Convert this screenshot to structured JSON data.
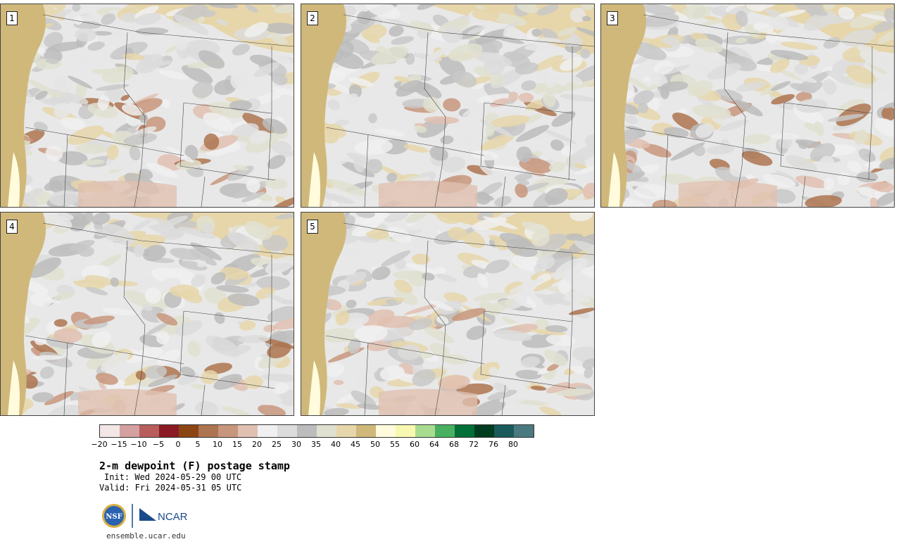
{
  "panels": [
    {
      "label": "1"
    },
    {
      "label": "2"
    },
    {
      "label": "3"
    },
    {
      "label": "4"
    },
    {
      "label": "5"
    }
  ],
  "colorbar": {
    "colors": [
      "#f2e6e6",
      "#d4a0a0",
      "#b85c5c",
      "#8a1a24",
      "#8b4513",
      "#ad7450",
      "#c8967c",
      "#e0c0b0",
      "#f0f0f0",
      "#dcdcdc",
      "#bcbcbc",
      "#e0e0d0",
      "#e6d6aa",
      "#cfb87a",
      "#fffbdc",
      "#f8f8b0",
      "#a8dc90",
      "#48b060",
      "#007038",
      "#003c20",
      "#1a5a5a",
      "#4a7a80"
    ],
    "ticks": [
      "−20",
      "−15",
      "−10",
      "−5",
      "0",
      "5",
      "10",
      "15",
      "20",
      "25",
      "30",
      "35",
      "40",
      "45",
      "50",
      "55",
      "60",
      "64",
      "68",
      "72",
      "76",
      "80"
    ]
  },
  "title": "2-m dewpoint (F) postage stamp",
  "init": "Init: Wed 2024-05-29 00 UTC",
  "valid": "Valid: Fri 2024-05-31 05 UTC",
  "logos": {
    "nsf": "NSF",
    "ncar": "NCAR"
  },
  "site": "ensemble.ucar.edu"
}
